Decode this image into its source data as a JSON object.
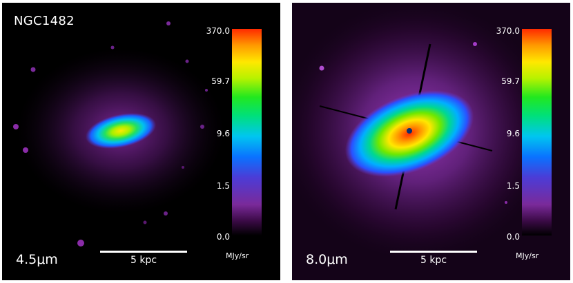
{
  "colors": {
    "background": "#000000",
    "text": "#ffffff",
    "colormap": [
      "#000000",
      "#3a0a45",
      "#7a2a9a",
      "#4c3cd6",
      "#0a72ff",
      "#00c6f0",
      "#00e07a",
      "#22e81f",
      "#b6f200",
      "#ffe800",
      "#ff9a00",
      "#ff2a00"
    ]
  },
  "panels": [
    {
      "galaxy": "NGC1482",
      "band": "4.5μm",
      "scalebar": "5 kpc",
      "colorbar": {
        "ticks": [
          "370.0",
          "59.7",
          "9.6",
          "1.5",
          "0.0"
        ],
        "unit": "MJy/sr"
      }
    },
    {
      "galaxy": "",
      "band": "8.0μm",
      "scalebar": "5 kpc",
      "colorbar": {
        "ticks": [
          "370.0",
          "59.7",
          "9.6",
          "1.5",
          "0.0"
        ],
        "unit": "MJy/sr"
      }
    }
  ]
}
